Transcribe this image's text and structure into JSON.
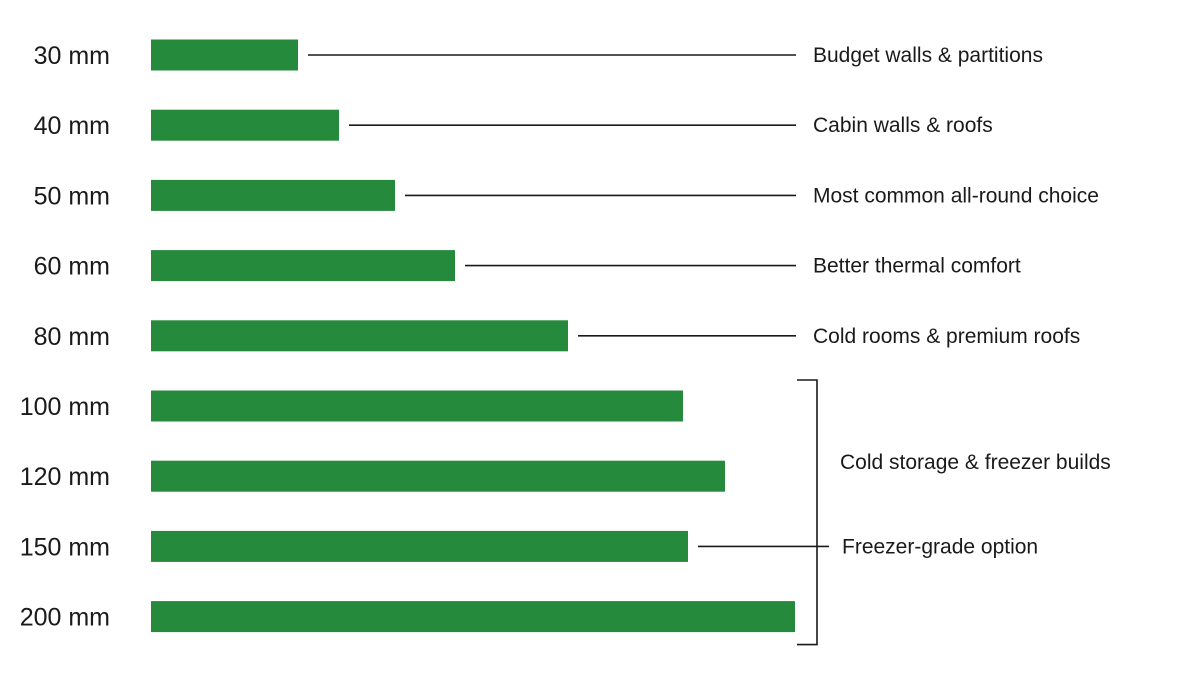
{
  "chart_data": {
    "type": "bar",
    "orientation": "horizontal",
    "categories": [
      "30 mm",
      "40 mm",
      "50 mm",
      "60 mm",
      "80 mm",
      "100 mm",
      "120 mm",
      "150 mm",
      "200 mm"
    ],
    "values": [
      30,
      40,
      50,
      60,
      80,
      100,
      120,
      150,
      200
    ],
    "title": "",
    "xlabel": "",
    "ylabel": "",
    "bar_color": "#258a3c",
    "line_color": "#1a1a1a",
    "annotations": [
      {
        "text": "Budget walls & partitions",
        "target": "30 mm"
      },
      {
        "text": "Cabin walls & roofs",
        "target": "40 mm"
      },
      {
        "text": "Most common all-round choice",
        "target": "50 mm"
      },
      {
        "text": "Better thermal comfort",
        "target": "60 mm"
      },
      {
        "text": "Cold rooms & premium roofs",
        "target": "80 mm"
      },
      {
        "text": "Freezer-grade option",
        "target": "150 mm"
      }
    ],
    "bracket": {
      "text": "Cold storage & freezer builds",
      "range": [
        "100 mm",
        "200 mm"
      ]
    }
  }
}
